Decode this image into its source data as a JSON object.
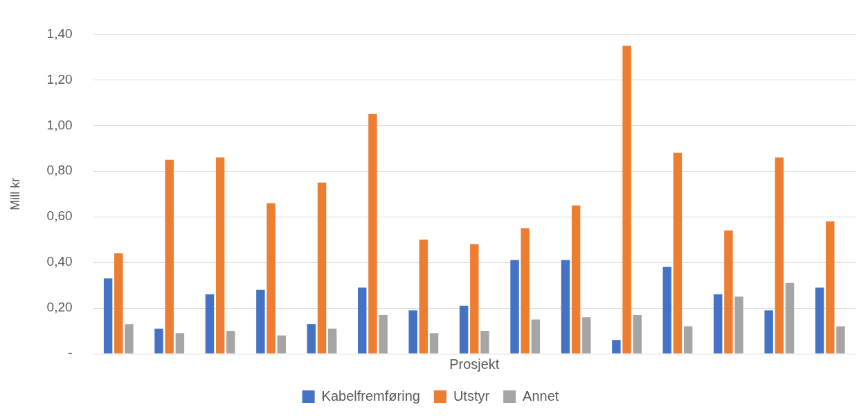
{
  "chart_data": {
    "type": "bar",
    "xlabel": "Prosjekt",
    "ylabel": "Mill kr",
    "categories": [
      null,
      null,
      null,
      null,
      null,
      null,
      null,
      null,
      null,
      null,
      null,
      null,
      null,
      null,
      null
    ],
    "series": [
      {
        "name": "Kabelfremføring",
        "color": "#4472c4",
        "values": [
          0.33,
          0.11,
          0.26,
          0.28,
          0.13,
          0.29,
          0.19,
          0.21,
          0.41,
          0.41,
          0.06,
          0.38,
          0.26,
          0.19,
          0.29
        ]
      },
      {
        "name": "Utstyr",
        "color": "#ed7d31",
        "values": [
          0.44,
          0.85,
          0.86,
          0.66,
          0.75,
          1.05,
          0.5,
          0.48,
          0.55,
          0.65,
          1.35,
          0.88,
          0.54,
          0.86,
          0.58
        ]
      },
      {
        "name": "Annet",
        "color": "#a5a5a5",
        "values": [
          0.13,
          0.09,
          0.1,
          0.08,
          0.11,
          0.17,
          0.09,
          0.1,
          0.15,
          0.16,
          0.17,
          0.12,
          0.25,
          0.31,
          0.12
        ]
      }
    ],
    "ylim": [
      0,
      1.4
    ],
    "yticks": [
      {
        "value": 0,
        "label": "-"
      },
      {
        "value": 0.2,
        "label": "0,20"
      },
      {
        "value": 0.4,
        "label": "0,40"
      },
      {
        "value": 0.6,
        "label": "0,60"
      },
      {
        "value": 0.8,
        "label": "0,80"
      },
      {
        "value": 1.0,
        "label": "1,00"
      },
      {
        "value": 1.2,
        "label": "1,20"
      },
      {
        "value": 1.4,
        "label": "1,40"
      }
    ],
    "grid": "y",
    "legend": "bottom",
    "tick_labels": "y"
  }
}
